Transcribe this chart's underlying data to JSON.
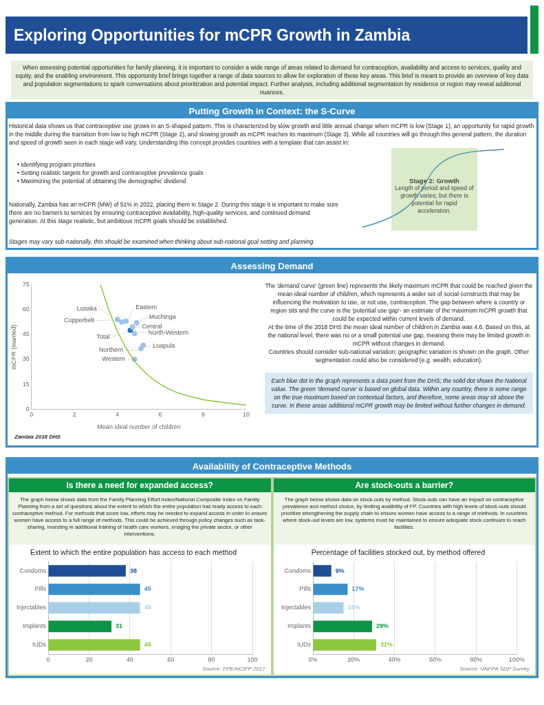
{
  "chart_data": [
    {
      "type": "other",
      "title": "Exploring Opportunities for mCPR Growth in Zambia",
      "annotations": [
        "When assessing potential opportunities for family planning, it is important to consider a wide range of areas related to demand for contraception, availability and access to services, quality and equity, and the enabling environment. This opportunity brief brings together a range of data sources to allow for exploration of these key areas. This brief is meant to provide an overview of key data and population segmentations to spark conversations about prioritization and potential impact.  Further analysis, including additional segmentation by residence or region may reveal additional nuances.",
        "Putting Growth in Context: the S-Curve",
        "Historical data shows us that contraceptive use grows in an S-shaped pattern. This is characterized by slow growth and little annual change when mCPR is low (Stage 1), an opportunity for rapid growth in the middle during the transition from low to high mCPR (Stage 2), and slowing growth as mCPR reaches its maximum (Stage 3).   While all countries will go through this general pattern, the duration and speed of growth seen in each stage will vary.  Understanding this concept provides countries with a template that can assist in:",
        "• Identifying program priorities",
        "• Setting realistic targets for growth and contraceptive prevalence goals",
        "• Maximizing the potential of obtaining the demographic dividend",
        "Nationally, Zambia has an mCPR (MW) of 51% in 2022, placing them in Stage 2.  During this stage it is important to make sure there are no barriers to services by ensuring contraceptive availability, high-quality services, and continued demand generation.   At this stage realistic, but ambitious mCPR goals should be established.",
        "Stage 2: Growth",
        "Length of period and speed of growth varies; but there is potential for rapid acceleration.",
        "Stages may vary sub-nationally, this should be examined when thinking about  sub-national goal setting and planning."
      ]
    },
    {
      "type": "scatter",
      "title": "Assessing Demand",
      "xlabel": "Mean ideal number of children",
      "ylabel": "mCPR (married)",
      "xlim": [
        0,
        10
      ],
      "xticks": [
        0,
        2,
        4,
        6,
        8,
        10
      ],
      "ylim": [
        0,
        75
      ],
      "yticks": [
        0,
        15,
        30,
        45,
        60,
        75
      ],
      "grid": false,
      "legend": false,
      "marker": "circle",
      "annotations": [
        "The 'demand curve' (green line) represents the likely maximum mCPR that could be reached given the mean ideal number of children, which represents a wider set of social constructs that may be influencing the motivation to use, or not use, contraception. The gap between where a country or region sits and the curve is the 'potential use gap'- an estimate of the maximum mCPR growth that could be expected within current levels of demand.",
        "At the time of the 2018 DHS the mean ideal number of children in Zambia was 4.6.  Based on this, at the national level, there was no or a small potential use gap, meaning there may be limited growth in mCPR without changes in demand.",
        "Countries should consider sub-national variation; geographic variation is shown on the graph.  Other segmentation could also be considered (e.g. wealth, education).",
        "Each blue dot in the graph represents a data point from the DHS; the solid  dot shows the National value. The green  'demand curve' is based on global data.  Within any country, there is some range on the true maximum based on contextual factors, and therefore, some areas may sit above the curve. In these areas additional mCPR growth may be limited without further changes in demand.",
        "Zambia 2018 DHS"
      ],
      "series": [
        {
          "type": "line",
          "marker": "none",
          "color": "#8dc63f",
          "x": [
            3.21,
            3.6,
            4,
            4.4,
            4.8,
            5.3,
            6,
            6.6,
            7.3,
            8,
            9,
            10
          ],
          "values": [
            75,
            60,
            47,
            37,
            29,
            22,
            15,
            11,
            8,
            5.8,
            4,
            2.5
          ]
        },
        {
          "name": "Lusaka",
          "color": "#9dc3e6",
          "x": [
            4.0
          ],
          "values": [
            54
          ]
        },
        {
          "name": "Eastern",
          "color": "#9dc3e6",
          "x": [
            4.4
          ],
          "values": [
            53
          ]
        },
        {
          "name": "Copperbelt",
          "color": "#9dc3e6",
          "x": [
            4.2
          ],
          "values": [
            52.5
          ]
        },
        {
          "name": "Muchinga",
          "color": "#9dc3e6",
          "x": [
            4.9
          ],
          "values": [
            52
          ]
        },
        {
          "name": "Central",
          "color": "#9dc3e6",
          "x": [
            4.7
          ],
          "values": [
            49.5
          ]
        },
        {
          "name": "Total",
          "color": "#2e75b6",
          "x": [
            4.6
          ],
          "values": [
            47.5
          ]
        },
        {
          "name": "North-Western",
          "color": "#9dc3e6",
          "x": [
            4.8
          ],
          "values": [
            45.5
          ]
        },
        {
          "name": "Luapula",
          "color": "#9dc3e6",
          "x": [
            5.2
          ],
          "values": [
            38.5
          ]
        },
        {
          "name": "Northern",
          "color": "#9dc3e6",
          "x": [
            5.1
          ],
          "values": [
            36.5
          ]
        },
        {
          "name": "Western",
          "color": "#9dc3e6",
          "x": [
            4.8
          ],
          "values": [
            30
          ]
        }
      ]
    },
    {
      "type": "bar",
      "orientation": "horizontal",
      "title": "Extent to which the entire population has access to each method",
      "subtitle": "Is there a need for expanded access?",
      "categories": [
        "Condoms",
        "Pills",
        "Injectables",
        "Implants",
        "IUDs"
      ],
      "values": [
        38,
        45,
        45,
        31,
        45
      ],
      "colors": [
        "#1f4e96",
        "#3a8fc8",
        "#a9cfe8",
        "#0e9447",
        "#8dc63f"
      ],
      "xlim": [
        0,
        100
      ],
      "xticks": [
        0,
        20,
        40,
        60,
        80,
        100
      ],
      "grid": "x",
      "legend": false,
      "data_labels": true,
      "annotations": [
        "Availability of Contraceptive Methods",
        "The graph below shows data from the Family Planning Effort Index/National Composite Index on Family Planning from a set of questions about the extent to which the entire population has ready access to each contraceptive method. For methods that score low, efforts may be needed to expand access in order to ensure women have access to a full range of methods. This could be achieved through policy changes such as task-sharing, investing in additional training of health care workers, enaging the private sector, or other interventions.",
        "Source: FPE/NCIFP 2017"
      ]
    },
    {
      "type": "bar",
      "orientation": "horizontal",
      "title": "Percentage of facilities stocked out, by method offered",
      "subtitle": "Are stock-outs a barrier?",
      "categories": [
        "Condoms",
        "Pills",
        "Injectables",
        "Implants",
        "IUDs"
      ],
      "values": [
        9,
        17,
        15,
        29,
        31
      ],
      "value_labels": [
        "9%",
        "17%",
        "15%",
        "29%",
        "31%"
      ],
      "colors": [
        "#1f4e96",
        "#3a8fc8",
        "#a9cfe8",
        "#0e9447",
        "#8dc63f"
      ],
      "xlim": [
        0,
        100
      ],
      "xticks": [
        {
          "value": 0,
          "label": "0%"
        },
        {
          "value": 20,
          "label": "20%"
        },
        {
          "value": 40,
          "label": "40%"
        },
        {
          "value": 60,
          "label": "60%"
        },
        {
          "value": 80,
          "label": "80%"
        },
        {
          "value": 100,
          "label": "100%"
        }
      ],
      "grid": "x",
      "legend": false,
      "annotations": [
        "The graph below shows data on stock-outs by method.  Stock-outs can have an impact on contraceptive prevalence and method choice, by limiting avalibility of FP.  Countries with high levels of stock-outs should prioritize strengthening the supply chain to ensure women have access to a range of methods.  In countries where stock-out levels are low, systems must be maintained to ensure adequate stock continues to reach facilities.",
        "Source: UNFPA SDP Survey"
      ]
    }
  ]
}
